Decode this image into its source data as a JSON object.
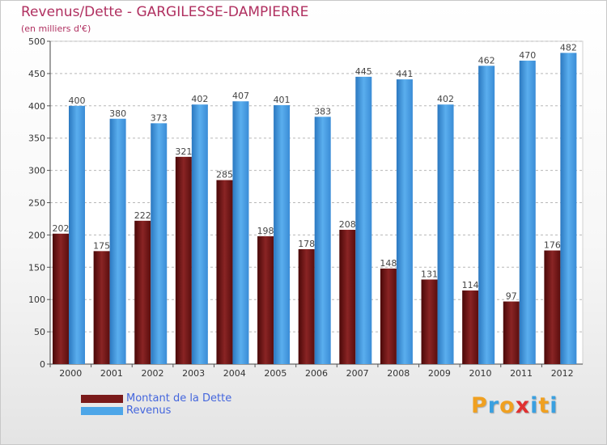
{
  "chart_data": {
    "type": "bar",
    "title": "Revenus/Dette - GARGILESSE-DAMPIERRE",
    "subtitle": "(en milliers d'€)",
    "categories": [
      "2000",
      "2001",
      "2002",
      "2003",
      "2004",
      "2005",
      "2006",
      "2007",
      "2008",
      "2009",
      "2010",
      "2011",
      "2012"
    ],
    "series": [
      {
        "name": "Montant de la Dette",
        "color": "#7a1a1a",
        "values": [
          202,
          175,
          222,
          321,
          285,
          198,
          178,
          208,
          148,
          131,
          114,
          97,
          176
        ]
      },
      {
        "name": "Revenus",
        "color": "#4da6e8",
        "values": [
          400,
          380,
          373,
          402,
          407,
          401,
          383,
          445,
          441,
          402,
          462,
          470,
          482
        ]
      }
    ],
    "ylim": [
      0,
      500
    ],
    "yticks": [
      0,
      50,
      100,
      150,
      200,
      250,
      300,
      350,
      400,
      450,
      500
    ],
    "grid": "horizontal dashed",
    "legend": "bottom-left"
  },
  "brand": {
    "letters": [
      "P",
      "r",
      "o",
      "x",
      "i",
      "t",
      "i"
    ],
    "colors": [
      "#f0a020",
      "#3aa0e0",
      "#f0a020",
      "#e03030",
      "#3aa0e0",
      "#f0a020",
      "#3aa0e0"
    ]
  }
}
